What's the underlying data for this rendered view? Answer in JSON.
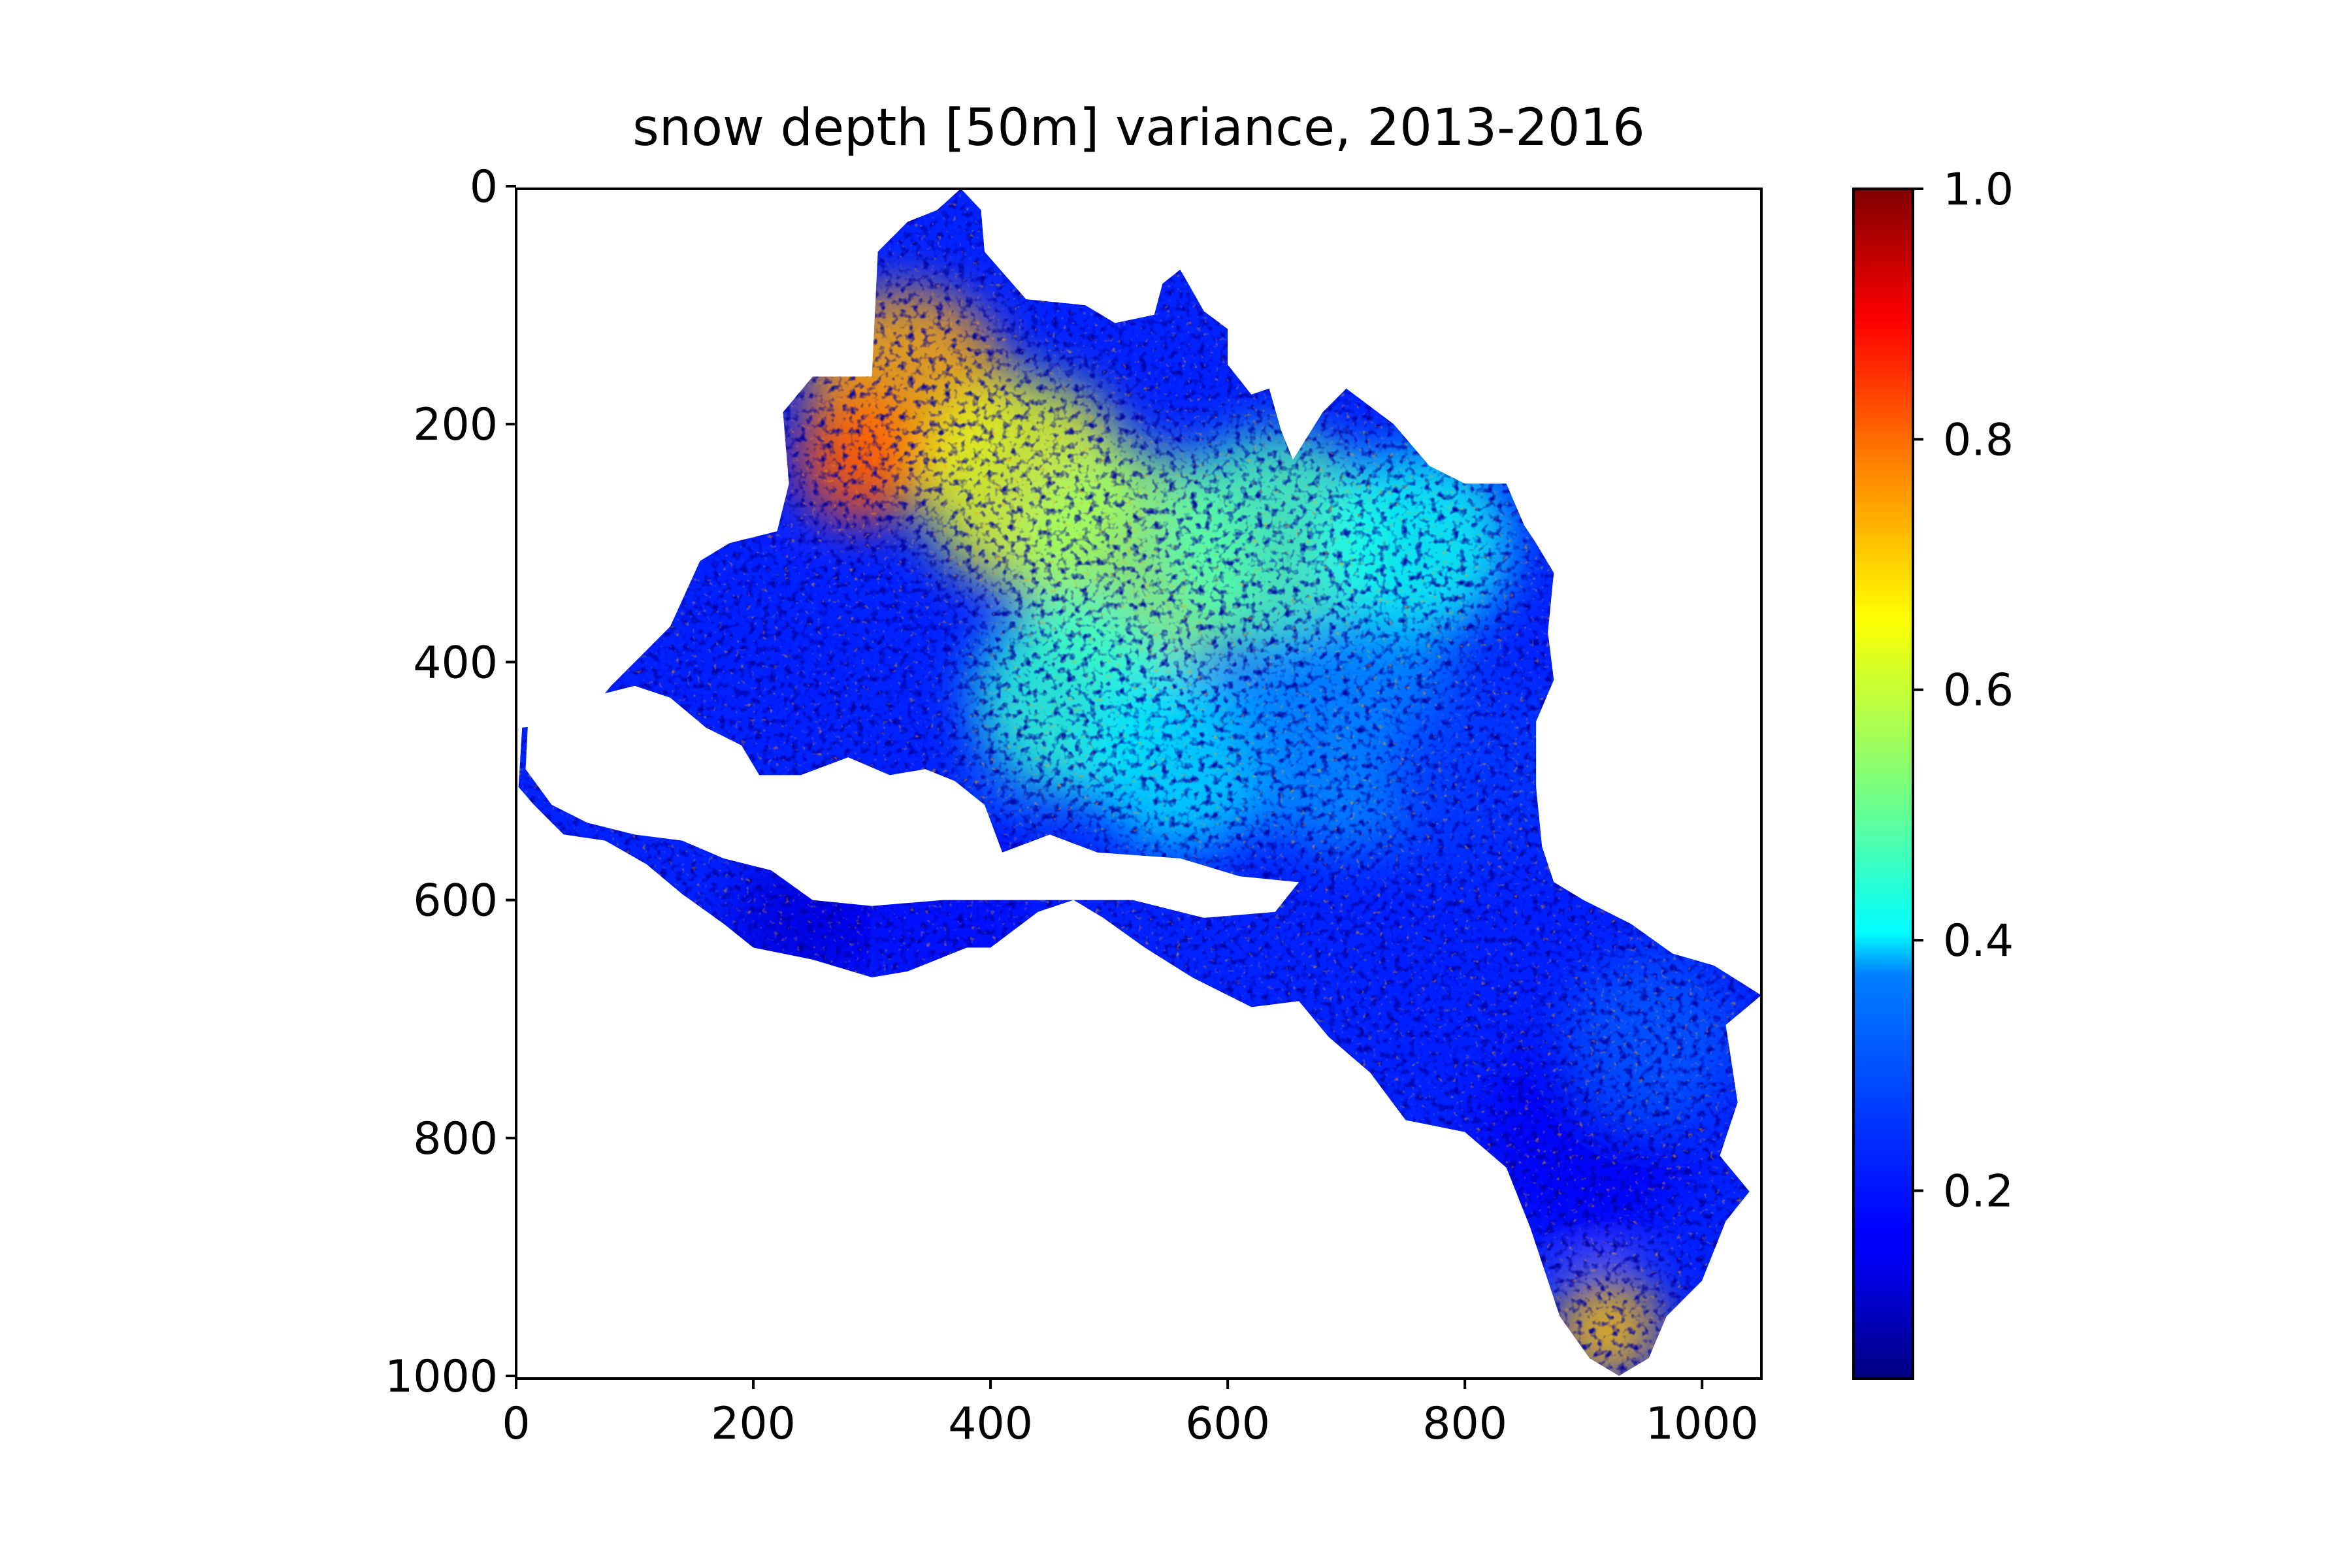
{
  "chart_data": {
    "type": "heatmap",
    "title": "snow depth [50m] variance, 2013-2016",
    "xlabel": "",
    "ylabel": "",
    "xlim": [
      0,
      1050
    ],
    "ylim": [
      1000,
      0
    ],
    "x_ticks": [
      0,
      200,
      400,
      600,
      800,
      1000
    ],
    "y_ticks": [
      0,
      200,
      400,
      600,
      800,
      1000
    ],
    "x_tick_labels": [
      "0",
      "200",
      "400",
      "600",
      "800",
      "1000"
    ],
    "y_tick_labels": [
      "0",
      "200",
      "400",
      "600",
      "800",
      "1000"
    ],
    "colormap": "jet",
    "colorbar": {
      "vmin": 0.05,
      "vmax": 1.0,
      "ticks": [
        0.2,
        0.4,
        0.6,
        0.8,
        1.0
      ],
      "tick_labels": [
        "0.2",
        "0.4",
        "0.6",
        "0.8",
        "1.0"
      ]
    },
    "masked_color": "#ffffff",
    "catchment_outline": [
      [
        375,
        2
      ],
      [
        392,
        20
      ],
      [
        395,
        55
      ],
      [
        430,
        95
      ],
      [
        480,
        100
      ],
      [
        505,
        115
      ],
      [
        538,
        108
      ],
      [
        545,
        82
      ],
      [
        560,
        70
      ],
      [
        580,
        105
      ],
      [
        600,
        120
      ],
      [
        600,
        150
      ],
      [
        620,
        175
      ],
      [
        635,
        170
      ],
      [
        645,
        205
      ],
      [
        655,
        230
      ],
      [
        680,
        190
      ],
      [
        700,
        170
      ],
      [
        740,
        200
      ],
      [
        770,
        235
      ],
      [
        800,
        250
      ],
      [
        835,
        250
      ],
      [
        850,
        285
      ],
      [
        860,
        300
      ],
      [
        875,
        325
      ],
      [
        870,
        375
      ],
      [
        875,
        415
      ],
      [
        860,
        450
      ],
      [
        860,
        505
      ],
      [
        865,
        555
      ],
      [
        875,
        585
      ],
      [
        900,
        600
      ],
      [
        940,
        620
      ],
      [
        975,
        645
      ],
      [
        1010,
        655
      ],
      [
        1050,
        680
      ],
      [
        1020,
        705
      ],
      [
        1030,
        770
      ],
      [
        1015,
        815
      ],
      [
        1040,
        845
      ],
      [
        1020,
        870
      ],
      [
        1000,
        920
      ],
      [
        970,
        950
      ],
      [
        955,
        985
      ],
      [
        930,
        1000
      ],
      [
        905,
        985
      ],
      [
        880,
        950
      ],
      [
        855,
        875
      ],
      [
        835,
        825
      ],
      [
        800,
        795
      ],
      [
        750,
        785
      ],
      [
        720,
        745
      ],
      [
        685,
        715
      ],
      [
        660,
        685
      ],
      [
        620,
        690
      ],
      [
        570,
        665
      ],
      [
        530,
        640
      ],
      [
        495,
        615
      ],
      [
        470,
        600
      ],
      [
        440,
        610
      ],
      [
        400,
        640
      ],
      [
        380,
        640
      ],
      [
        330,
        660
      ],
      [
        300,
        665
      ],
      [
        250,
        650
      ],
      [
        200,
        640
      ],
      [
        175,
        620
      ],
      [
        140,
        595
      ],
      [
        110,
        570
      ],
      [
        75,
        550
      ],
      [
        40,
        545
      ],
      [
        15,
        520
      ],
      [
        2,
        505
      ],
      [
        5,
        455
      ],
      [
        55,
        450
      ],
      [
        80,
        420
      ],
      [
        110,
        390
      ],
      [
        130,
        370
      ],
      [
        155,
        315
      ],
      [
        180,
        300
      ],
      [
        220,
        290
      ],
      [
        230,
        250
      ],
      [
        225,
        190
      ],
      [
        250,
        160
      ],
      [
        300,
        160
      ],
      [
        305,
        55
      ],
      [
        330,
        30
      ],
      [
        355,
        20
      ]
    ],
    "no_data_region": [
      [
        10,
        450
      ],
      [
        60,
        430
      ],
      [
        100,
        420
      ],
      [
        130,
        430
      ],
      [
        160,
        455
      ],
      [
        190,
        470
      ],
      [
        205,
        495
      ],
      [
        240,
        495
      ],
      [
        280,
        480
      ],
      [
        315,
        495
      ],
      [
        345,
        490
      ],
      [
        370,
        500
      ],
      [
        395,
        520
      ],
      [
        410,
        560
      ],
      [
        450,
        545
      ],
      [
        490,
        560
      ],
      [
        560,
        565
      ],
      [
        610,
        580
      ],
      [
        660,
        585
      ],
      [
        640,
        610
      ],
      [
        580,
        615
      ],
      [
        520,
        600
      ],
      [
        470,
        600
      ],
      [
        420,
        600
      ],
      [
        360,
        600
      ],
      [
        300,
        605
      ],
      [
        250,
        600
      ],
      [
        215,
        575
      ],
      [
        175,
        565
      ],
      [
        140,
        550
      ],
      [
        100,
        545
      ],
      [
        60,
        535
      ],
      [
        30,
        520
      ],
      [
        8,
        490
      ]
    ],
    "value_zones": [
      {
        "center": [
          330,
          170
        ],
        "radius": 85,
        "value": 0.72
      },
      {
        "center": [
          430,
          250
        ],
        "radius": 90,
        "value": 0.62
      },
      {
        "center": [
          290,
          230
        ],
        "radius": 55,
        "value": 0.8
      },
      {
        "center": [
          520,
          320
        ],
        "radius": 100,
        "value": 0.55
      },
      {
        "center": [
          640,
          300
        ],
        "radius": 95,
        "value": 0.48
      },
      {
        "center": [
          760,
          300
        ],
        "radius": 80,
        "value": 0.42
      },
      {
        "center": [
          470,
          430
        ],
        "radius": 85,
        "value": 0.45
      },
      {
        "center": [
          560,
          480
        ],
        "radius": 80,
        "value": 0.38
      },
      {
        "center": [
          700,
          460
        ],
        "radius": 100,
        "value": 0.3
      },
      {
        "center": [
          820,
          500
        ],
        "radius": 90,
        "value": 0.22
      },
      {
        "center": [
          880,
          640
        ],
        "radius": 110,
        "value": 0.2
      },
      {
        "center": [
          900,
          800
        ],
        "radius": 90,
        "value": 0.16
      },
      {
        "center": [
          960,
          720
        ],
        "radius": 70,
        "value": 0.25
      },
      {
        "center": [
          360,
          600
        ],
        "radius": 90,
        "value": 0.18
      },
      {
        "center": [
          240,
          620
        ],
        "radius": 60,
        "value": 0.14
      },
      {
        "center": [
          170,
          380
        ],
        "radius": 70,
        "value": 0.2
      },
      {
        "center": [
          920,
          960
        ],
        "radius": 45,
        "value": 0.7
      }
    ]
  }
}
